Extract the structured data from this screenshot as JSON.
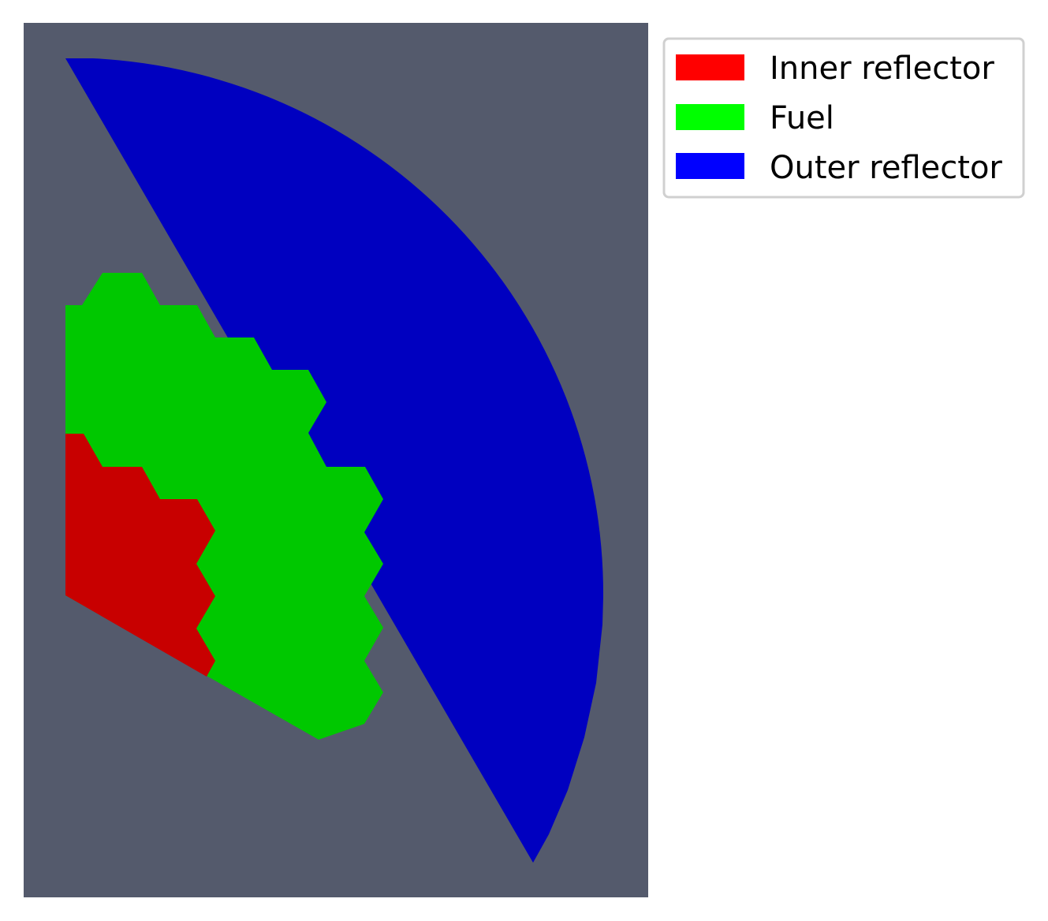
{
  "colors": {
    "viewport_background": "#545a6c",
    "page_background": "#ffffff",
    "legend_border": "#d0d0d0"
  },
  "regions": [
    {
      "name": "Inner reflector",
      "swatch_color": "#ff0000",
      "fill_color": "#c80000"
    },
    {
      "name": "Fuel",
      "swatch_color": "#00ff00",
      "fill_color": "#00c800"
    },
    {
      "name": "Outer reflector",
      "swatch_color": "#0000ff",
      "fill_color": "#0000c0"
    }
  ],
  "legend": {
    "placement": "outside-top-right",
    "items": [
      {
        "label": "Inner reflector",
        "color": "#ff0000"
      },
      {
        "label": "Fuel",
        "color": "#00ff00"
      },
      {
        "label": "Outer reflector",
        "color": "#0000ff"
      }
    ]
  }
}
